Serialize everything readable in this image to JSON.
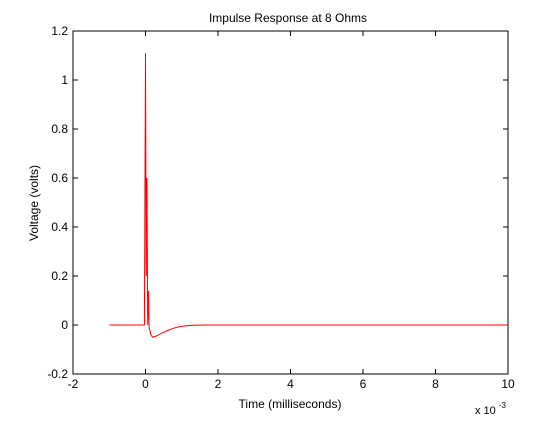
{
  "chart_data": {
    "type": "line",
    "title": "Impulse Response at 8 Ohms",
    "xlabel": "Time (milliseconds)",
    "ylabel": "Voltage (volts)",
    "x_multiplier_base": "x 10",
    "x_multiplier_exponent": "-3",
    "xlim": [
      -2,
      10
    ],
    "ylim": [
      -0.2,
      1.2
    ],
    "x_ticks": [
      -2,
      0,
      2,
      4,
      6,
      8,
      10
    ],
    "x_tick_labels": [
      "-2",
      "0",
      "2",
      "4",
      "6",
      "8",
      "10"
    ],
    "y_ticks": [
      -0.2,
      0,
      0.2,
      0.4,
      0.6,
      0.8,
      1,
      1.2
    ],
    "y_tick_labels": [
      "-0.2",
      "0",
      "0.2",
      "0.4",
      "0.6",
      "0.8",
      "1",
      "1.2"
    ],
    "grid": false,
    "series": [
      {
        "color": "#ff0000",
        "points": [
          [
            -1.0,
            0
          ],
          [
            -0.5,
            0
          ],
          [
            -0.03,
            0
          ],
          [
            0.0,
            1.11
          ],
          [
            0.02,
            0.2
          ],
          [
            0.04,
            0.6
          ],
          [
            0.06,
            0.0
          ],
          [
            0.08,
            0.14
          ],
          [
            0.1,
            -0.01
          ],
          [
            0.15,
            -0.04
          ],
          [
            0.2,
            -0.05
          ],
          [
            0.3,
            -0.045
          ],
          [
            0.4,
            -0.037
          ],
          [
            0.5,
            -0.03
          ],
          [
            0.6,
            -0.023
          ],
          [
            0.7,
            -0.017
          ],
          [
            0.8,
            -0.012
          ],
          [
            0.9,
            -0.008
          ],
          [
            1.0,
            -0.005
          ],
          [
            1.2,
            -0.002
          ],
          [
            1.4,
            -0.001
          ],
          [
            1.6,
            0
          ],
          [
            2.0,
            0
          ],
          [
            10.0,
            0
          ]
        ]
      }
    ]
  }
}
